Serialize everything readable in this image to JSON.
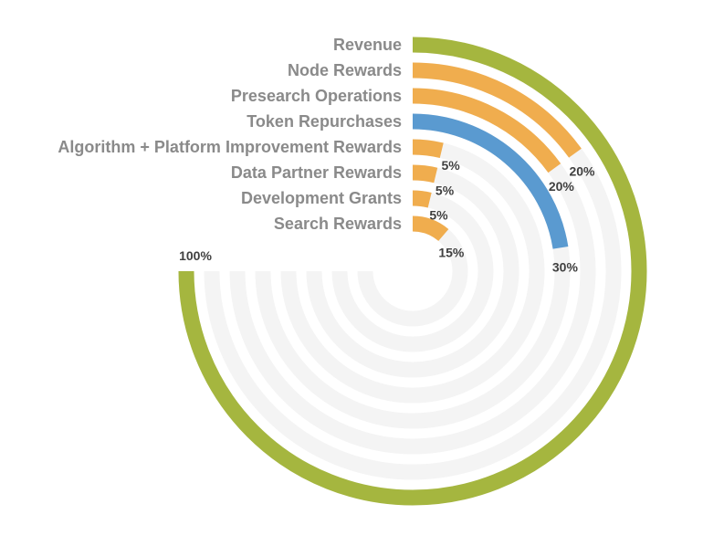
{
  "chart_data": {
    "type": "radial-bar",
    "unit": "%",
    "max": 100,
    "track_color": "#f4f4f4",
    "categories": [
      "Revenue",
      "Node Rewards",
      "Presearch Operations",
      "Token Repurchases",
      "Algorithm + Platform Improvement Rewards",
      "Data Partner Rewards",
      "Development Grants",
      "Search Rewards"
    ],
    "values": [
      100,
      20,
      20,
      30,
      5,
      5,
      5,
      15
    ],
    "value_labels": [
      "100%",
      "20%",
      "20%",
      "30%",
      "5%",
      "5%",
      "5%",
      "15%"
    ],
    "colors": [
      "#a5b63f",
      "#f0ad4e",
      "#f0ad4e",
      "#5a9ad0",
      "#f0ad4e",
      "#f0ad4e",
      "#f0ad4e",
      "#f0ad4e"
    ]
  }
}
